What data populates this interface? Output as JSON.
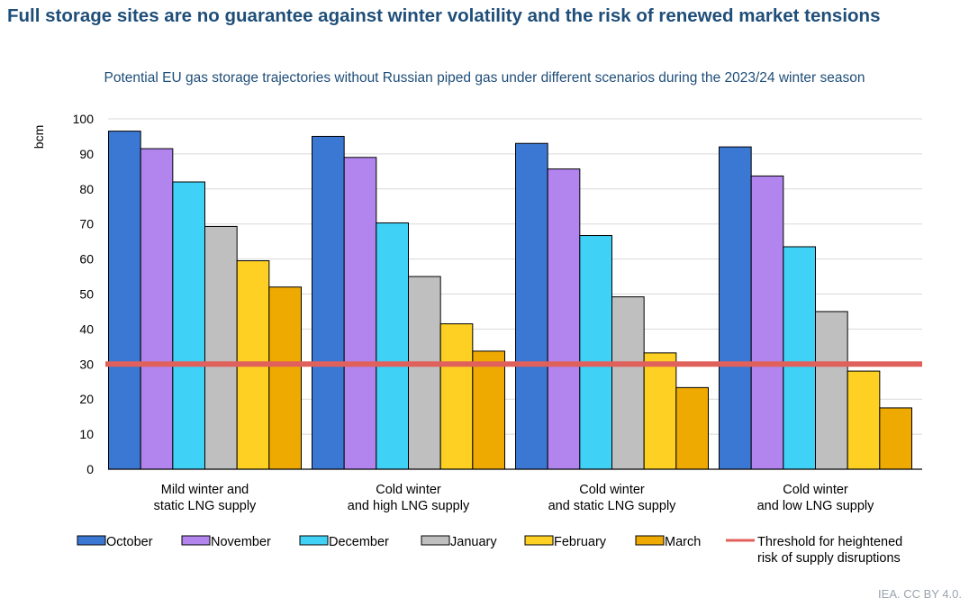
{
  "title": "Full storage sites are no guarantee against winter volatility and the risk of renewed market tensions",
  "subtitle": "Potential EU gas storage trajectories without Russian piped gas under different scenarios during the 2023/24 winter season",
  "credit": "IEA. CC BY 4.0.",
  "chart_data": {
    "type": "bar",
    "ylabel": "bcm",
    "ylim": [
      0,
      100
    ],
    "yticks": [
      0,
      10,
      20,
      30,
      40,
      50,
      60,
      70,
      80,
      90,
      100
    ],
    "grid": true,
    "legend_position": "bottom",
    "categories": [
      [
        "Mild winter and",
        "static LNG supply"
      ],
      [
        "Cold winter",
        "and high LNG supply"
      ],
      [
        "Cold winter",
        "and static LNG supply"
      ],
      [
        "Cold winter",
        "and low LNG supply"
      ]
    ],
    "series": [
      {
        "name": "October",
        "color": "#3b78d3",
        "values": [
          96.5,
          95,
          93,
          92
        ]
      },
      {
        "name": "November",
        "color": "#b184ee",
        "values": [
          91.5,
          89,
          85.7,
          83.7
        ]
      },
      {
        "name": "December",
        "color": "#40d1f6",
        "values": [
          82,
          70.3,
          66.7,
          63.5
        ]
      },
      {
        "name": "January",
        "color": "#bfbfbf",
        "values": [
          69.3,
          55,
          49.2,
          45
        ]
      },
      {
        "name": "February",
        "color": "#fdd023",
        "values": [
          59.5,
          41.5,
          33.2,
          28
        ]
      },
      {
        "name": "March",
        "color": "#eeaa00",
        "values": [
          52,
          33.7,
          23.3,
          17.5
        ]
      }
    ],
    "threshold": {
      "value": 30,
      "color": "#e0605c",
      "label": [
        "Threshold for heightened",
        "risk of supply disruptions"
      ]
    }
  }
}
